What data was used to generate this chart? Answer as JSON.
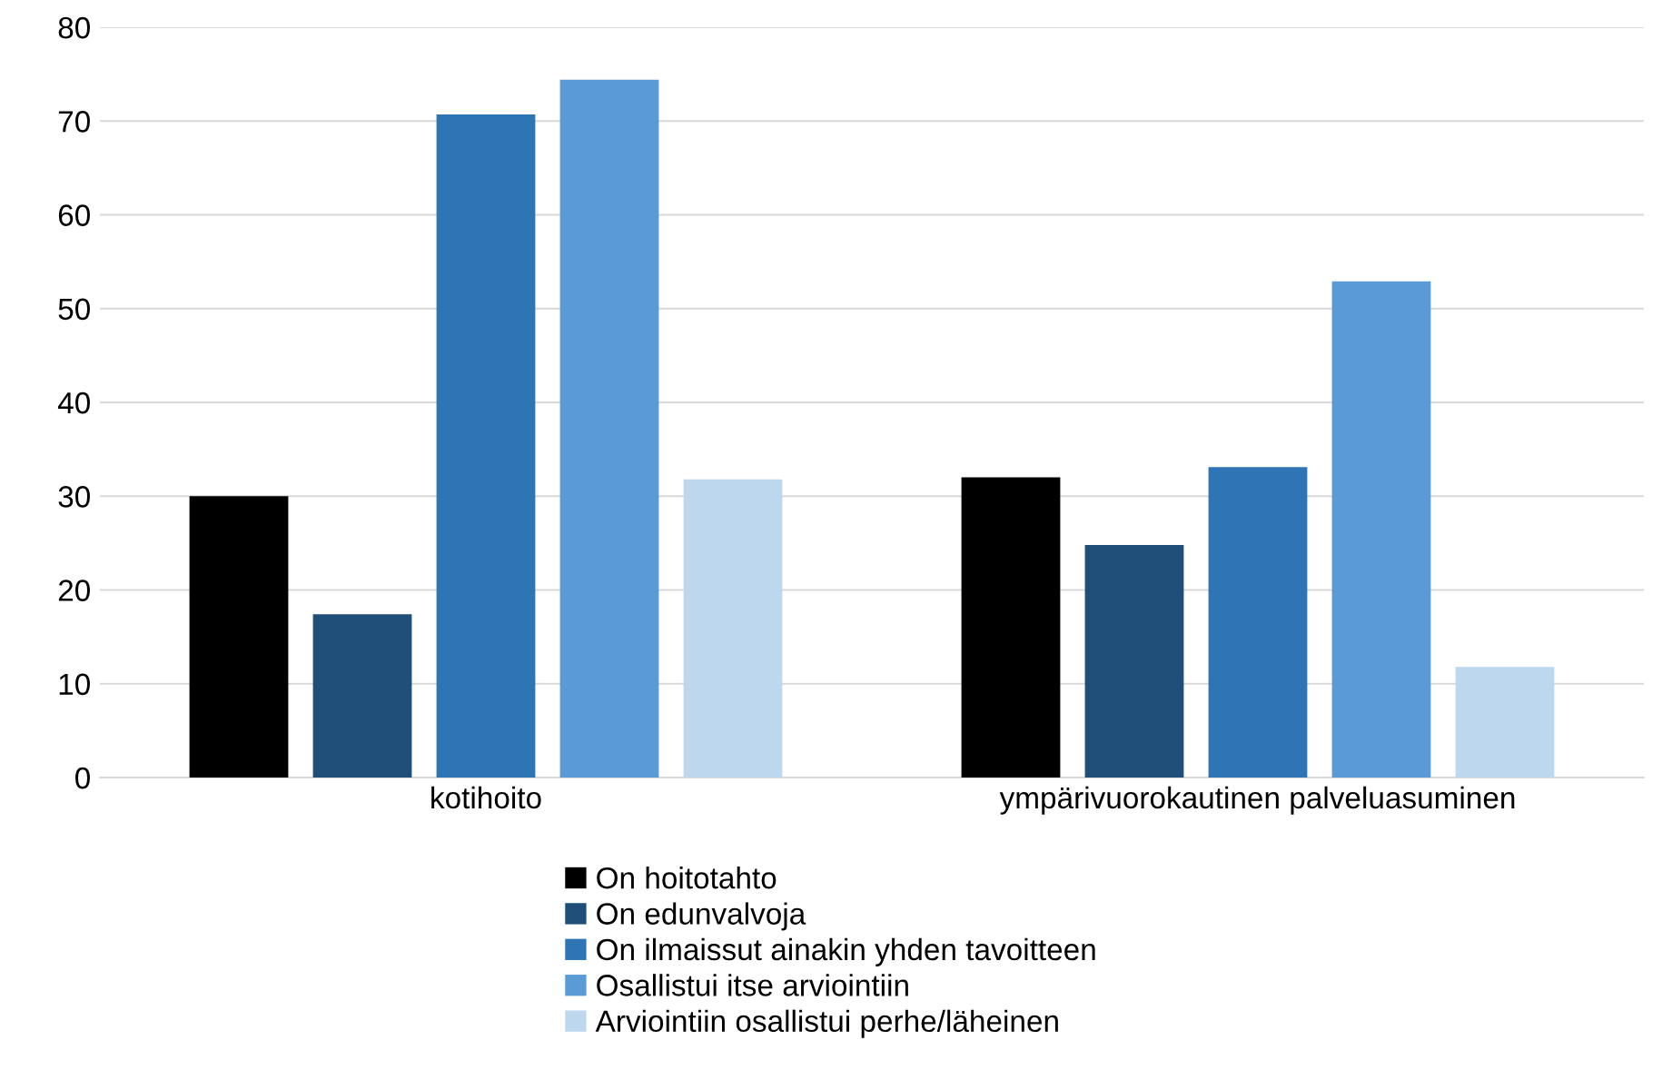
{
  "chart_data": {
    "type": "bar",
    "categories": [
      "kotihoito",
      "ympärivuorokautinen palveluasuminen"
    ],
    "series": [
      {
        "name": "On hoitotahto",
        "color": "#000000",
        "values": [
          30.0,
          32.0
        ]
      },
      {
        "name": "On edunvalvoja",
        "color": "#1f4e79",
        "values": [
          17.4,
          24.8
        ]
      },
      {
        "name": "On ilmaissut ainakin yhden tavoitteen",
        "color": "#2e75b6",
        "values": [
          70.7,
          33.1
        ]
      },
      {
        "name": "Osallistui itse arviointiin",
        "color": "#5b9bd5",
        "values": [
          74.4,
          52.9
        ]
      },
      {
        "name": "Arviointiin osallistui perhe/läheinen",
        "color": "#bdd7ee",
        "values": [
          31.8,
          11.8
        ]
      }
    ],
    "ylim": [
      0,
      80
    ],
    "yticks": [
      0,
      10,
      20,
      30,
      40,
      50,
      60,
      70,
      80
    ],
    "grid": "y",
    "legend": "bottom"
  }
}
